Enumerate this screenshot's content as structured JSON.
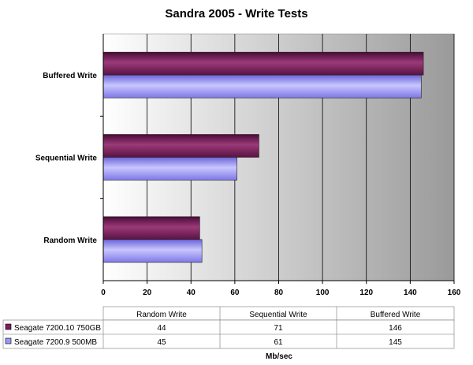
{
  "chart_data": {
    "type": "bar",
    "orientation": "horizontal",
    "title": "Sandra 2005 - Write Tests",
    "categories": [
      "Random Write",
      "Sequential Write",
      "Buffered Write"
    ],
    "series": [
      {
        "name": "Seagate 7200.10 750GB",
        "values": [
          44,
          71,
          146
        ],
        "color": "#7a1e5a"
      },
      {
        "name": "Seagate 7200.9 500MB",
        "values": [
          45,
          61,
          145
        ],
        "color": "#9b96f5"
      }
    ],
    "xlabel": "Mb/sec",
    "ylabel": "",
    "xlim": [
      0,
      160
    ],
    "xticks": [
      "0",
      "20",
      "40",
      "60",
      "80",
      "100",
      "120",
      "140",
      "160"
    ],
    "grid": true,
    "legend": "data-table",
    "data_table": {
      "columns": [
        "Random Write",
        "Sequential Write",
        "Buffered Write"
      ],
      "rows": [
        {
          "name": "Seagate 7200.10 750GB",
          "cells": [
            "44",
            "71",
            "146"
          ]
        },
        {
          "name": "Seagate 7200.9 500MB",
          "cells": [
            "45",
            "61",
            "145"
          ]
        }
      ]
    }
  }
}
